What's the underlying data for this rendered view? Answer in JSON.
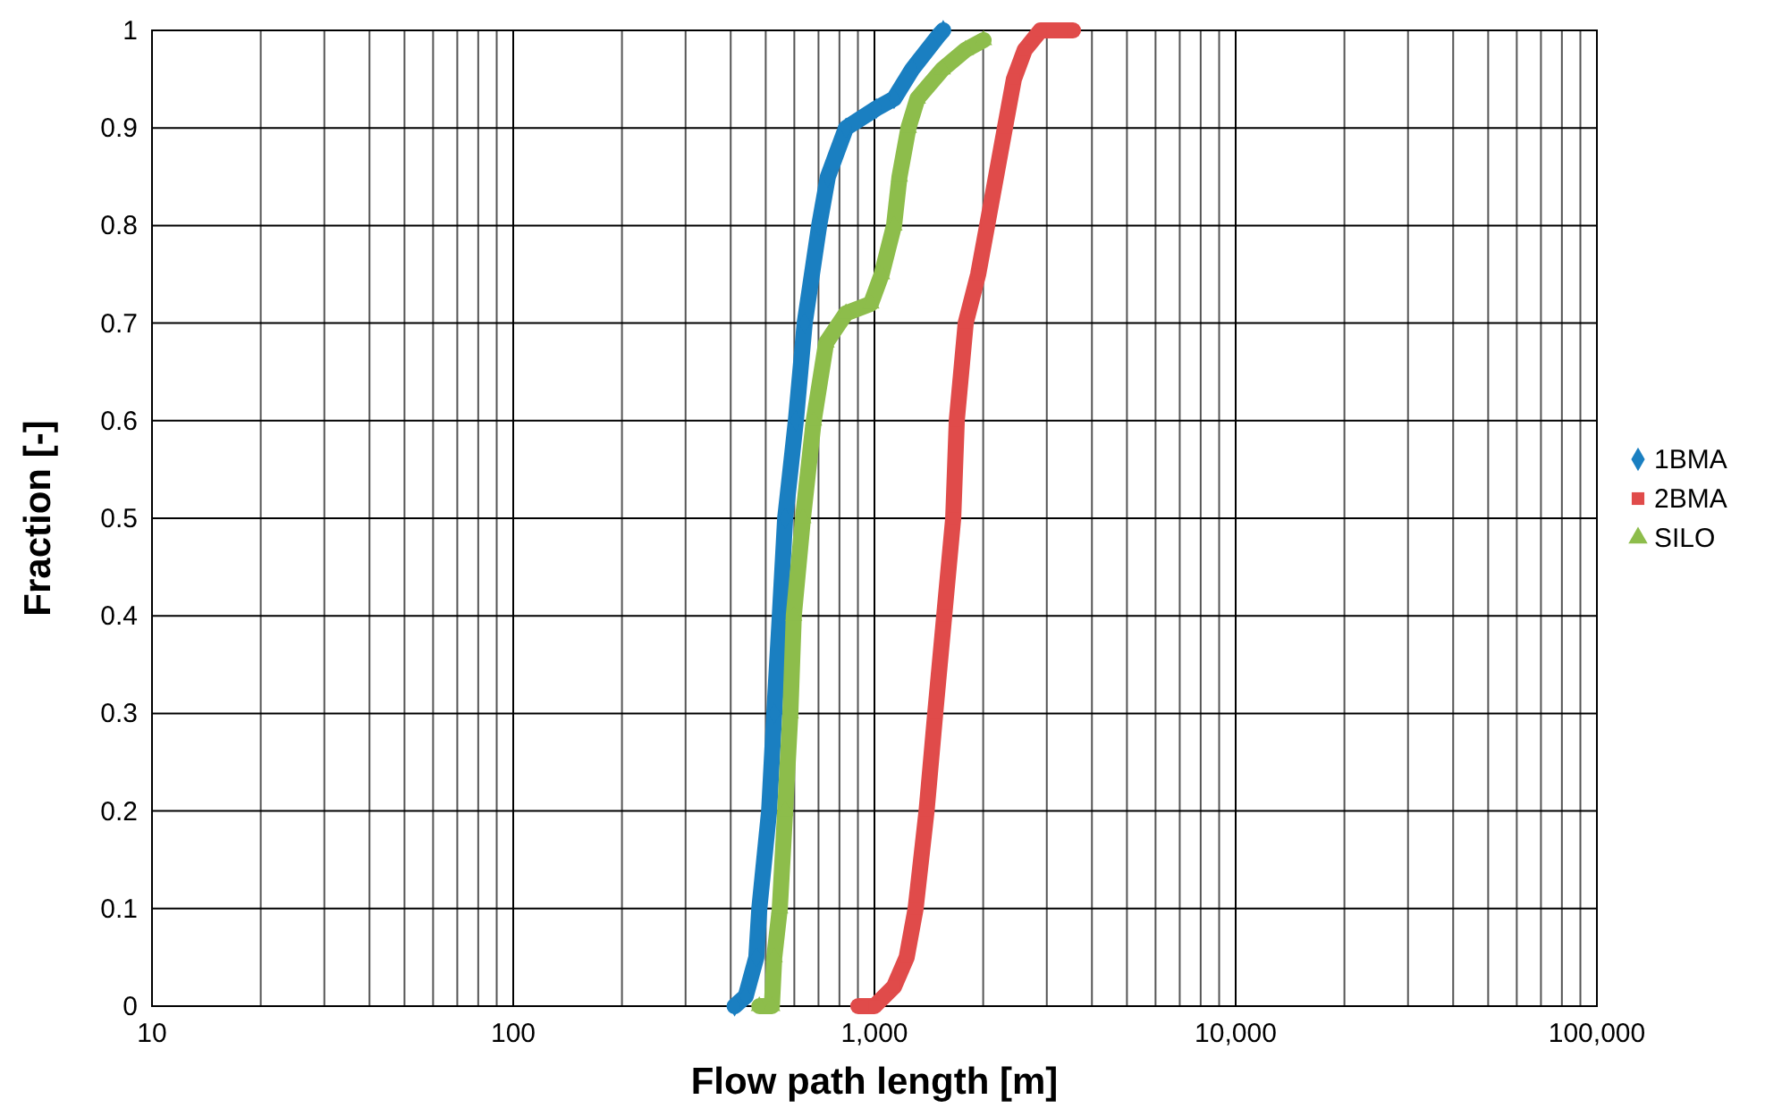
{
  "chart_data": {
    "type": "line",
    "xlabel": "Flow path length [m]",
    "ylabel": "Fraction [-]",
    "log": "x",
    "grid": true,
    "legend": "right",
    "line_style": "solid",
    "xlim": [
      10,
      100000
    ],
    "ylim": [
      0,
      1
    ],
    "xticks": [
      10,
      {
        "value": 20,
        "label": null
      },
      {
        "value": 30,
        "label": null
      },
      {
        "value": 40,
        "label": null
      },
      {
        "value": 50,
        "label": null
      },
      {
        "value": 60,
        "label": null
      },
      {
        "value": 70,
        "label": null
      },
      {
        "value": 80,
        "label": null
      },
      {
        "value": 90,
        "label": null
      },
      100,
      {
        "value": 200,
        "label": null
      },
      {
        "value": 300,
        "label": null
      },
      {
        "value": 400,
        "label": null
      },
      {
        "value": 500,
        "label": null
      },
      {
        "value": 600,
        "label": null
      },
      {
        "value": 700,
        "label": null
      },
      {
        "value": 800,
        "label": null
      },
      {
        "value": 900,
        "label": null
      },
      {
        "value": 1000,
        "label": "1,000"
      },
      {
        "value": 2000,
        "label": null
      },
      {
        "value": 3000,
        "label": null
      },
      {
        "value": 4000,
        "label": null
      },
      {
        "value": 5000,
        "label": null
      },
      {
        "value": 6000,
        "label": null
      },
      {
        "value": 7000,
        "label": null
      },
      {
        "value": 8000,
        "label": null
      },
      {
        "value": 9000,
        "label": null
      },
      {
        "value": 10000,
        "label": "10,000"
      },
      {
        "value": 20000,
        "label": null
      },
      {
        "value": 30000,
        "label": null
      },
      {
        "value": 40000,
        "label": null
      },
      {
        "value": 50000,
        "label": null
      },
      {
        "value": 60000,
        "label": null
      },
      {
        "value": 70000,
        "label": null
      },
      {
        "value": 80000,
        "label": null
      },
      {
        "value": 90000,
        "label": null
      },
      {
        "value": 100000,
        "label": "100,000"
      }
    ],
    "yticks": [
      0,
      0.1,
      0.2,
      0.3,
      0.4,
      0.5,
      0.6,
      0.7,
      0.8,
      0.9,
      1
    ],
    "series": [
      {
        "name": "1BMA",
        "color": "#1a7fc1",
        "marker": "diamond",
        "x": [
          410,
          440,
          471,
          480,
          511,
          528,
          547,
          566,
          606,
          641,
          703,
          743,
          834,
          1012,
          1133,
          1271,
          1507,
          1550
        ],
        "values": [
          0,
          0.01,
          0.05,
          0.1,
          0.2,
          0.3,
          0.4,
          0.5,
          0.6,
          0.7,
          0.8,
          0.85,
          0.9,
          0.92,
          0.93,
          0.96,
          0.995,
          1
        ]
      },
      {
        "name": "2BMA",
        "color": "#e04b4a",
        "marker": "square",
        "x": [
          902,
          1000,
          1133,
          1228,
          1300,
          1394,
          1473,
          1560,
          1652,
          1690,
          1789,
          1937,
          2051,
          2297,
          2432,
          2606,
          2884,
          3545
        ],
        "values": [
          0,
          0,
          0.02,
          0.05,
          0.1,
          0.2,
          0.3,
          0.4,
          0.5,
          0.6,
          0.7,
          0.75,
          0.8,
          0.9,
          0.95,
          0.98,
          1,
          1
        ]
      },
      {
        "name": "SILO",
        "color": "#8dbd4b",
        "marker": "triangle",
        "x": [
          480,
          520,
          528,
          547,
          566,
          585,
          598,
          634,
          679,
          735,
          834,
          978,
          1047,
          1133,
          1173,
          1242,
          1315,
          1542,
          1787,
          2005
        ],
        "values": [
          0,
          0,
          0.05,
          0.1,
          0.2,
          0.3,
          0.4,
          0.5,
          0.6,
          0.68,
          0.71,
          0.72,
          0.75,
          0.8,
          0.85,
          0.9,
          0.93,
          0.96,
          0.98,
          0.99
        ]
      }
    ]
  }
}
